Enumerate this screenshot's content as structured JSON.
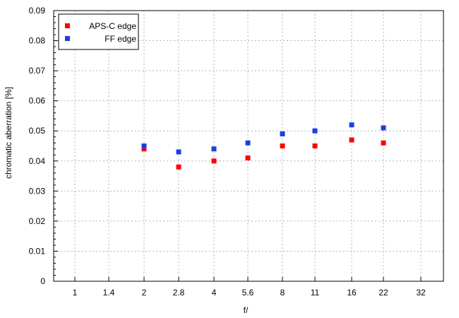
{
  "chart_data": {
    "type": "scatter",
    "title": "",
    "xlabel": "f/",
    "ylabel": "chromatic  aberration [%]",
    "ylim": [
      0,
      0.09
    ],
    "yticks": [
      "0",
      "0.01",
      "0.02",
      "0.03",
      "0.04",
      "0.05",
      "0.06",
      "0.07",
      "0.08",
      "0.09"
    ],
    "categories": [
      "1",
      "1.4",
      "2",
      "2.8",
      "4",
      "5.6",
      "8",
      "11",
      "16",
      "22",
      "32"
    ],
    "grid": true,
    "legend_position": "top-left",
    "series": [
      {
        "name": "APS-C edge",
        "color": "#ff0000",
        "x": [
          "2",
          "2.8",
          "4",
          "5.6",
          "8",
          "11",
          "16",
          "22"
        ],
        "values": [
          0.044,
          0.038,
          0.04,
          0.041,
          0.045,
          0.045,
          0.047,
          0.046
        ]
      },
      {
        "name": "FF edge",
        "color": "#1a3fe0",
        "x": [
          "2",
          "2.8",
          "4",
          "5.6",
          "8",
          "11",
          "16",
          "22"
        ],
        "values": [
          0.045,
          0.043,
          0.044,
          0.046,
          0.049,
          0.05,
          0.052,
          0.051
        ]
      }
    ]
  }
}
